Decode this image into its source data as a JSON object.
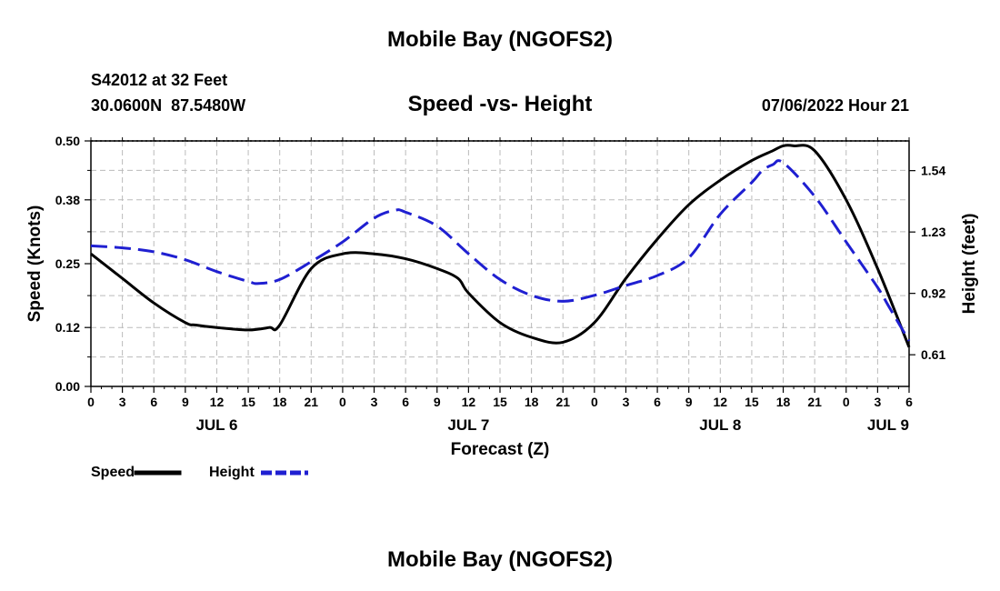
{
  "header": {
    "title": "Mobile Bay (NGOFS2)",
    "station": "S42012 at 32 Feet",
    "coords": "30.0600N  87.5480W",
    "subtitle": "Speed -vs- Height",
    "timestamp": "07/06/2022 Hour 21"
  },
  "footer": {
    "title": "Mobile Bay (NGOFS2)"
  },
  "colors": {
    "speed": "#000000",
    "height": "#1f1fd1",
    "grid": "#bbbbbb"
  },
  "chart_data": {
    "type": "line",
    "title": "Speed -vs- Height",
    "xlabel": "Forecast (Z)",
    "ylabel": "Speed (Knots)",
    "y2label": "Height (feet)",
    "xlim": [
      0,
      78
    ],
    "ylim": [
      0,
      0.5
    ],
    "y2lim": [
      0.45,
      1.69
    ],
    "grid": true,
    "legend_position": "bottom-left",
    "x_tick_labels": [
      "0",
      "3",
      "6",
      "9",
      "12",
      "15",
      "18",
      "21",
      "0",
      "3",
      "6",
      "9",
      "12",
      "15",
      "18",
      "21",
      "0",
      "3",
      "6",
      "9",
      "12",
      "15",
      "18",
      "21",
      "0",
      "3",
      "6"
    ],
    "date_labels": [
      {
        "hour": 12,
        "label": "JUL 6"
      },
      {
        "hour": 36,
        "label": "JUL 7"
      },
      {
        "hour": 60,
        "label": "JUL 8"
      },
      {
        "hour": 76,
        "label": "JUL 9"
      }
    ],
    "y_ticks": [
      "0.00",
      "0.12",
      "0.25",
      "0.38",
      "0.50"
    ],
    "y2_ticks": [
      "0.61",
      "0.92",
      "1.23",
      "1.54"
    ],
    "series": [
      {
        "name": "Speed",
        "axis": "left",
        "style": "solid",
        "x": [
          0,
          3,
          6,
          9,
          10,
          12,
          15,
          17,
          18,
          21,
          24,
          27,
          30,
          33,
          35,
          36,
          39,
          42,
          45,
          48,
          51,
          54,
          57,
          60,
          63,
          65,
          66,
          67,
          69,
          72,
          75,
          78
        ],
        "y": [
          0.27,
          0.22,
          0.17,
          0.13,
          0.125,
          0.12,
          0.115,
          0.12,
          0.125,
          0.24,
          0.27,
          0.27,
          0.26,
          0.24,
          0.22,
          0.19,
          0.13,
          0.1,
          0.09,
          0.13,
          0.22,
          0.3,
          0.37,
          0.42,
          0.46,
          0.48,
          0.49,
          0.49,
          0.48,
          0.38,
          0.24,
          0.08
        ]
      },
      {
        "name": "Height",
        "axis": "right",
        "style": "dashed",
        "x": [
          0,
          3,
          6,
          9,
          12,
          15,
          16,
          18,
          21,
          24,
          27,
          29,
          30,
          33,
          36,
          39,
          42,
          45,
          48,
          51,
          54,
          57,
          60,
          63,
          64,
          65,
          66,
          69,
          72,
          75,
          76,
          78
        ],
        "y": [
          1.16,
          1.15,
          1.13,
          1.09,
          1.03,
          0.98,
          0.97,
          0.99,
          1.08,
          1.18,
          1.3,
          1.34,
          1.33,
          1.26,
          1.12,
          0.99,
          0.91,
          0.88,
          0.91,
          0.96,
          1.01,
          1.1,
          1.32,
          1.48,
          1.54,
          1.57,
          1.58,
          1.41,
          1.18,
          0.95,
          0.86,
          0.68
        ]
      }
    ]
  }
}
